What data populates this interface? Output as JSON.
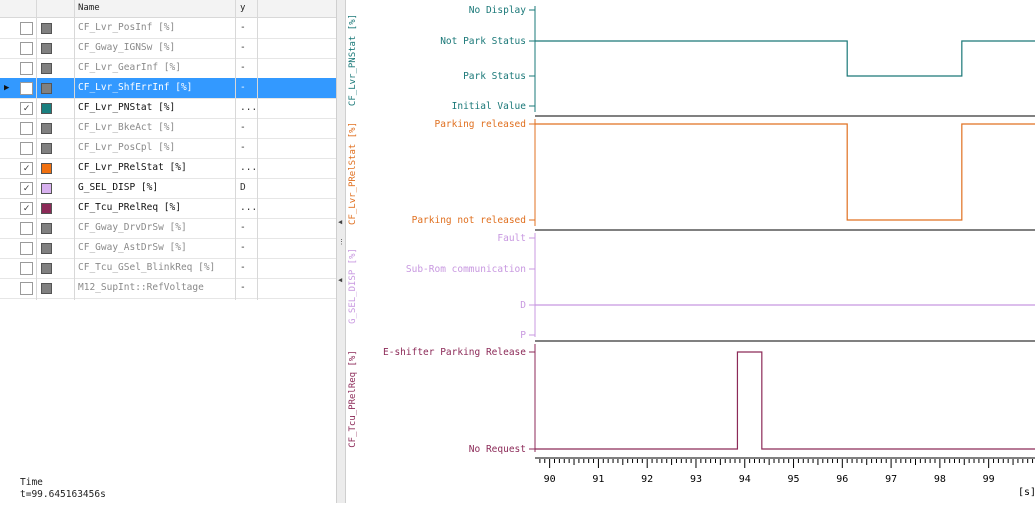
{
  "table": {
    "columns": {
      "name": "Name",
      "y": "y"
    },
    "rows": [
      {
        "name": "CF_Lvr_PosInf [%]",
        "y": "-",
        "checked": false,
        "color": "#808080",
        "selected": false
      },
      {
        "name": "CF_Gway_IGNSw [%]",
        "y": "-",
        "checked": false,
        "color": "#808080",
        "selected": false
      },
      {
        "name": "CF_Lvr_GearInf [%]",
        "y": "-",
        "checked": false,
        "color": "#808080",
        "selected": false
      },
      {
        "name": "CF_Lvr_ShfErrInf [%]",
        "y": "-",
        "checked": false,
        "color": "#808080",
        "selected": true
      },
      {
        "name": "CF_Lvr_PNStat [%]",
        "y": "...",
        "checked": true,
        "color": "#1a8080",
        "selected": false
      },
      {
        "name": "CF_Lvr_BkeAct [%]",
        "y": "-",
        "checked": false,
        "color": "#808080",
        "selected": false
      },
      {
        "name": "CF_Lvr_PosCpl [%]",
        "y": "-",
        "checked": false,
        "color": "#808080",
        "selected": false
      },
      {
        "name": "CF_Lvr_PRelStat [%]",
        "y": "...",
        "checked": true,
        "color": "#f07010",
        "selected": false
      },
      {
        "name": "G_SEL_DISP [%]",
        "y": "D",
        "checked": true,
        "color": "#d7b0ee",
        "selected": false
      },
      {
        "name": "CF_Tcu_PRelReq [%]",
        "y": "...",
        "checked": true,
        "color": "#8c2a58",
        "selected": false
      },
      {
        "name": "CF_Gway_DrvDrSw [%]",
        "y": "-",
        "checked": false,
        "color": "#808080",
        "selected": false
      },
      {
        "name": "CF_Gway_AstDrSw [%]",
        "y": "-",
        "checked": false,
        "color": "#808080",
        "selected": false
      },
      {
        "name": "CF_Tcu_GSel_BlinkReq [%]",
        "y": "-",
        "checked": false,
        "color": "#808080",
        "selected": false
      },
      {
        "name": "M12_SupInt::RefVoltage",
        "y": "-",
        "checked": false,
        "color": "#808080",
        "selected": false
      }
    ]
  },
  "time": {
    "label": "Time",
    "value": "t=99.645163456s"
  },
  "chart_data": {
    "type": "line",
    "x_unit": "[s]",
    "xlim": [
      89.7,
      99.95
    ],
    "x_ticks": [
      90,
      91,
      92,
      93,
      94,
      95,
      96,
      97,
      98,
      99
    ],
    "panels": [
      {
        "name": "CF_Lvr_PNStat [%]",
        "color": "#1a7878",
        "levels": [
          "No Display",
          "Not Park Status",
          "Park Status",
          "Initial Value"
        ],
        "points": [
          [
            89.7,
            "Not Park Status"
          ],
          [
            96.1,
            "Not Park Status"
          ],
          [
            96.1,
            "Park Status"
          ],
          [
            98.45,
            "Park Status"
          ],
          [
            98.45,
            "Not Park Status"
          ],
          [
            99.95,
            "Not Park Status"
          ]
        ]
      },
      {
        "name": "CF_Lvr_PRelStat [%]",
        "color": "#e07020",
        "levels": [
          "Parking released",
          "Parking not released"
        ],
        "points": [
          [
            89.7,
            "Parking released"
          ],
          [
            96.1,
            "Parking released"
          ],
          [
            96.1,
            "Parking not released"
          ],
          [
            98.45,
            "Parking not released"
          ],
          [
            98.45,
            "Parking released"
          ],
          [
            99.95,
            "Parking released"
          ]
        ]
      },
      {
        "name": "G_SEL_DISP [%]",
        "color": "#c898e0",
        "levels": [
          "Fault",
          "Sub-Rom communication",
          "D",
          "P"
        ],
        "points": [
          [
            89.7,
            "D"
          ],
          [
            99.95,
            "D"
          ]
        ]
      },
      {
        "name": "CF_Tcu_PRelReq [%]",
        "color": "#8c2a58",
        "levels": [
          "E-shifter Parking Release",
          "No Request"
        ],
        "points": [
          [
            89.7,
            "No Request"
          ],
          [
            93.85,
            "No Request"
          ],
          [
            93.85,
            "E-shifter Parking Release"
          ],
          [
            94.35,
            "E-shifter Parking Release"
          ],
          [
            94.35,
            "No Request"
          ],
          [
            99.95,
            "No Request"
          ]
        ]
      }
    ]
  }
}
